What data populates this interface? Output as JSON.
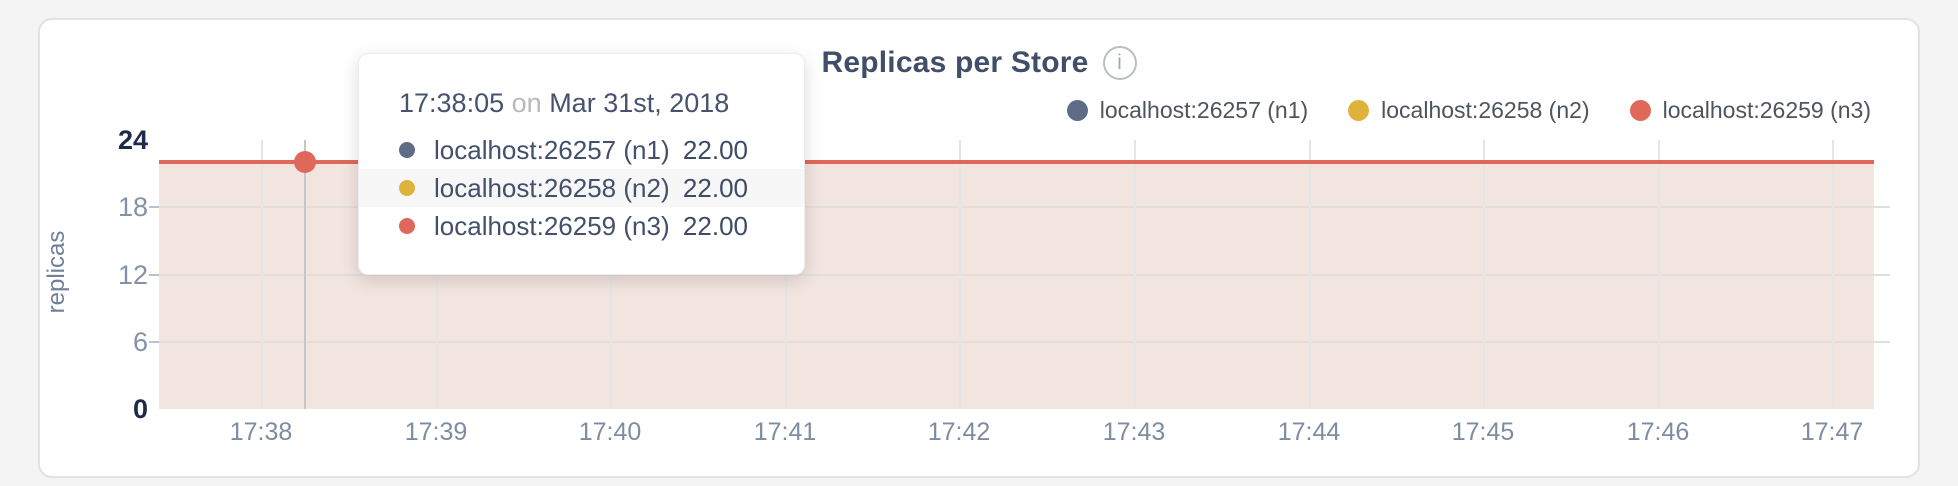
{
  "header": {
    "title": "Replicas per Store",
    "info_icon": "i"
  },
  "legend": {
    "items": [
      {
        "label": "localhost:26257 (n1)",
        "color": "#5f6c87"
      },
      {
        "label": "localhost:26258 (n2)",
        "color": "#dfb33b"
      },
      {
        "label": "localhost:26259 (n3)",
        "color": "#df685a"
      }
    ]
  },
  "axes": {
    "ylabel": "replicas",
    "yticks": [
      {
        "value": 24,
        "label": "24",
        "emphasis": true
      },
      {
        "value": 18,
        "label": "18",
        "emphasis": false
      },
      {
        "value": 12,
        "label": "12",
        "emphasis": false
      },
      {
        "value": 6,
        "label": "6",
        "emphasis": false
      },
      {
        "value": 0,
        "label": "0",
        "emphasis": true
      }
    ],
    "xticks": [
      "17:38",
      "17:39",
      "17:40",
      "17:41",
      "17:42",
      "17:43",
      "17:44",
      "17:45",
      "17:46",
      "17:47"
    ]
  },
  "tooltip": {
    "time": "17:38:05",
    "conjunction": "on",
    "date": "Mar 31st, 2018",
    "rows": [
      {
        "label": "localhost:26257 (n1)",
        "value": "22.00",
        "color": "#5f6c87",
        "highlight": false
      },
      {
        "label": "localhost:26258 (n2)",
        "value": "22.00",
        "color": "#dfb33b",
        "highlight": true
      },
      {
        "label": "localhost:26259 (n3)",
        "value": "22.00",
        "color": "#df685a",
        "highlight": false
      }
    ]
  },
  "colors": {
    "line": "#df685a",
    "fill": "#f2e4de",
    "grid": "#e6e5e4",
    "guideline": "#c6c6c6"
  },
  "chart_data": {
    "type": "area",
    "title": "Replicas per Store",
    "xlabel": "",
    "ylabel": "replicas",
    "ylim": [
      0,
      24
    ],
    "yticks": [
      0,
      6,
      12,
      18,
      24
    ],
    "x": [
      "17:38",
      "17:39",
      "17:40",
      "17:41",
      "17:42",
      "17:43",
      "17:44",
      "17:45",
      "17:46",
      "17:47"
    ],
    "series": [
      {
        "name": "localhost:26257 (n1)",
        "color": "#5f6c87",
        "values": [
          22,
          22,
          22,
          22,
          22,
          22,
          22,
          22,
          22,
          22
        ]
      },
      {
        "name": "localhost:26258 (n2)",
        "color": "#dfb33b",
        "values": [
          22,
          22,
          22,
          22,
          22,
          22,
          22,
          22,
          22,
          22
        ]
      },
      {
        "name": "localhost:26259 (n3)",
        "color": "#df685a",
        "values": [
          22,
          22,
          22,
          22,
          22,
          22,
          22,
          22,
          22,
          22
        ]
      }
    ],
    "grid": true,
    "legend_position": "top-right",
    "hover_point": {
      "time": "17:38:05",
      "date": "Mar 31st, 2018",
      "values": [
        22.0,
        22.0,
        22.0
      ]
    }
  }
}
